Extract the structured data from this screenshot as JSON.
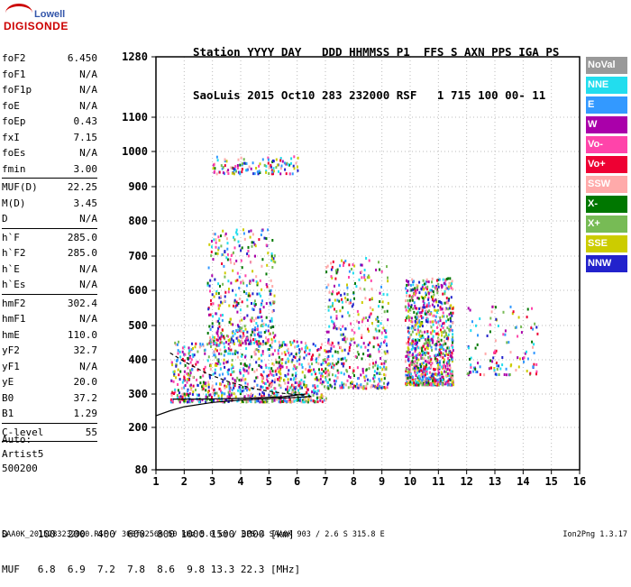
{
  "logo": {
    "line1": "Lowell",
    "line2": "DIGISONDE"
  },
  "header": {
    "row1": "Station YYYY DAY   DDD HHMMSS P1  FFS S AXN PPS IGA PS",
    "row2": "SaoLuis 2015 Oct10 283 232000 RSF   1 715 100 00- 11"
  },
  "params": {
    "g1": [
      {
        "k": "foF2",
        "v": "6.450"
      },
      {
        "k": "foF1",
        "v": "N/A"
      },
      {
        "k": "foF1p",
        "v": "N/A"
      },
      {
        "k": "foE",
        "v": "N/A"
      },
      {
        "k": "foEp",
        "v": "0.43"
      },
      {
        "k": "fxI",
        "v": "7.15"
      },
      {
        "k": "foEs",
        "v": "N/A"
      },
      {
        "k": "fmin",
        "v": "3.00"
      }
    ],
    "g2": [
      {
        "k": "MUF(D)",
        "v": "22.25"
      },
      {
        "k": "M(D)",
        "v": "3.45"
      },
      {
        "k": "D",
        "v": "N/A"
      }
    ],
    "g3": [
      {
        "k": "h`F",
        "v": "285.0"
      },
      {
        "k": "h`F2",
        "v": "285.0"
      },
      {
        "k": "h`E",
        "v": "N/A"
      },
      {
        "k": "h`Es",
        "v": "N/A"
      }
    ],
    "g4": [
      {
        "k": "hmF2",
        "v": "302.4"
      },
      {
        "k": "hmF1",
        "v": "N/A"
      },
      {
        "k": "hmE",
        "v": "110.0"
      },
      {
        "k": "yF2",
        "v": "32.7"
      },
      {
        "k": "yF1",
        "v": "N/A"
      },
      {
        "k": "yE",
        "v": "20.0"
      },
      {
        "k": "B0",
        "v": "37.2"
      },
      {
        "k": "B1",
        "v": "1.29"
      }
    ],
    "g5": [
      {
        "k": "C-level",
        "v": "55"
      }
    ]
  },
  "auto": {
    "l1": "Auto:",
    "l2": "Artist5",
    "l3": "500200"
  },
  "legend": [
    {
      "name": "NoVal",
      "color": "#999999"
    },
    {
      "name": "NNE",
      "color": "#22ddee"
    },
    {
      "name": "E",
      "color": "#3399ff"
    },
    {
      "name": "W",
      "color": "#aa00aa"
    },
    {
      "name": "Vo-",
      "color": "#ff44aa"
    },
    {
      "name": "Vo+",
      "color": "#ee0033"
    },
    {
      "name": "SSW",
      "color": "#ffaaaa"
    },
    {
      "name": "X-",
      "color": "#007700"
    },
    {
      "name": "X+",
      "color": "#77bb55"
    },
    {
      "name": "SSE",
      "color": "#cccc00"
    },
    {
      "name": "NNW",
      "color": "#2222cc"
    }
  ],
  "chart_data": {
    "type": "scatter",
    "xlim": [
      1,
      16
    ],
    "ylim": [
      80,
      1280
    ],
    "x_ticks": [
      1,
      2,
      3,
      4,
      5,
      6,
      7,
      8,
      9,
      10,
      11,
      12,
      13,
      14,
      15,
      16
    ],
    "y_ticks": [
      80,
      200,
      300,
      400,
      500,
      600,
      700,
      800,
      900,
      1000,
      1100,
      1280
    ],
    "y_scale": "nonlinear",
    "grid": "dotted",
    "profile_curves": [
      {
        "name": "profile",
        "points": [
          [
            1,
            235
          ],
          [
            1.5,
            250
          ],
          [
            2,
            262
          ],
          [
            3,
            275
          ],
          [
            4,
            282
          ],
          [
            5,
            286
          ],
          [
            6,
            290
          ],
          [
            6.5,
            293
          ]
        ]
      },
      {
        "name": "trace",
        "points": [
          [
            1.6,
            285
          ],
          [
            2.5,
            285
          ],
          [
            3.5,
            286
          ],
          [
            4.5,
            288
          ],
          [
            5.5,
            292
          ],
          [
            6.3,
            300
          ]
        ]
      },
      {
        "name": "dashed",
        "points": [
          [
            1.5,
            420
          ],
          [
            2,
            395
          ],
          [
            2.8,
            360
          ],
          [
            3.6,
            335
          ],
          [
            4.5,
            315
          ],
          [
            5.5,
            302
          ],
          [
            6.3,
            296
          ]
        ]
      }
    ],
    "clusters": [
      {
        "x": [
          1.5,
          7.0
        ],
        "y": [
          280,
          460
        ],
        "density": "high"
      },
      {
        "x": [
          2.8,
          5.2
        ],
        "y": [
          450,
          780
        ],
        "density": "medium"
      },
      {
        "x": [
          3.0,
          6.0
        ],
        "y": [
          940,
          990
        ],
        "density": "low"
      },
      {
        "x": [
          7.0,
          9.2
        ],
        "y": [
          320,
          700
        ],
        "density": "medium"
      },
      {
        "x": [
          9.8,
          11.5
        ],
        "y": [
          330,
          640
        ],
        "density": "high"
      },
      {
        "x": [
          12.0,
          14.5
        ],
        "y": [
          360,
          560
        ],
        "density": "low"
      }
    ]
  },
  "bottom": {
    "row1": "D     100  200  400  600  800 1000 1500 3000 [km]",
    "row2": "MUF   6.8  6.9  7.2  7.8  8.6  9.8 13.3 22.3 [MHz]"
  },
  "footer": "SAA0K_2015283232000.RSF / 300fx256h 50 kHz 5.0 km / DPS-4 SAA0K 903 / 2.6 S 315.8 E",
  "version": "Ion2Png 1.3.17"
}
